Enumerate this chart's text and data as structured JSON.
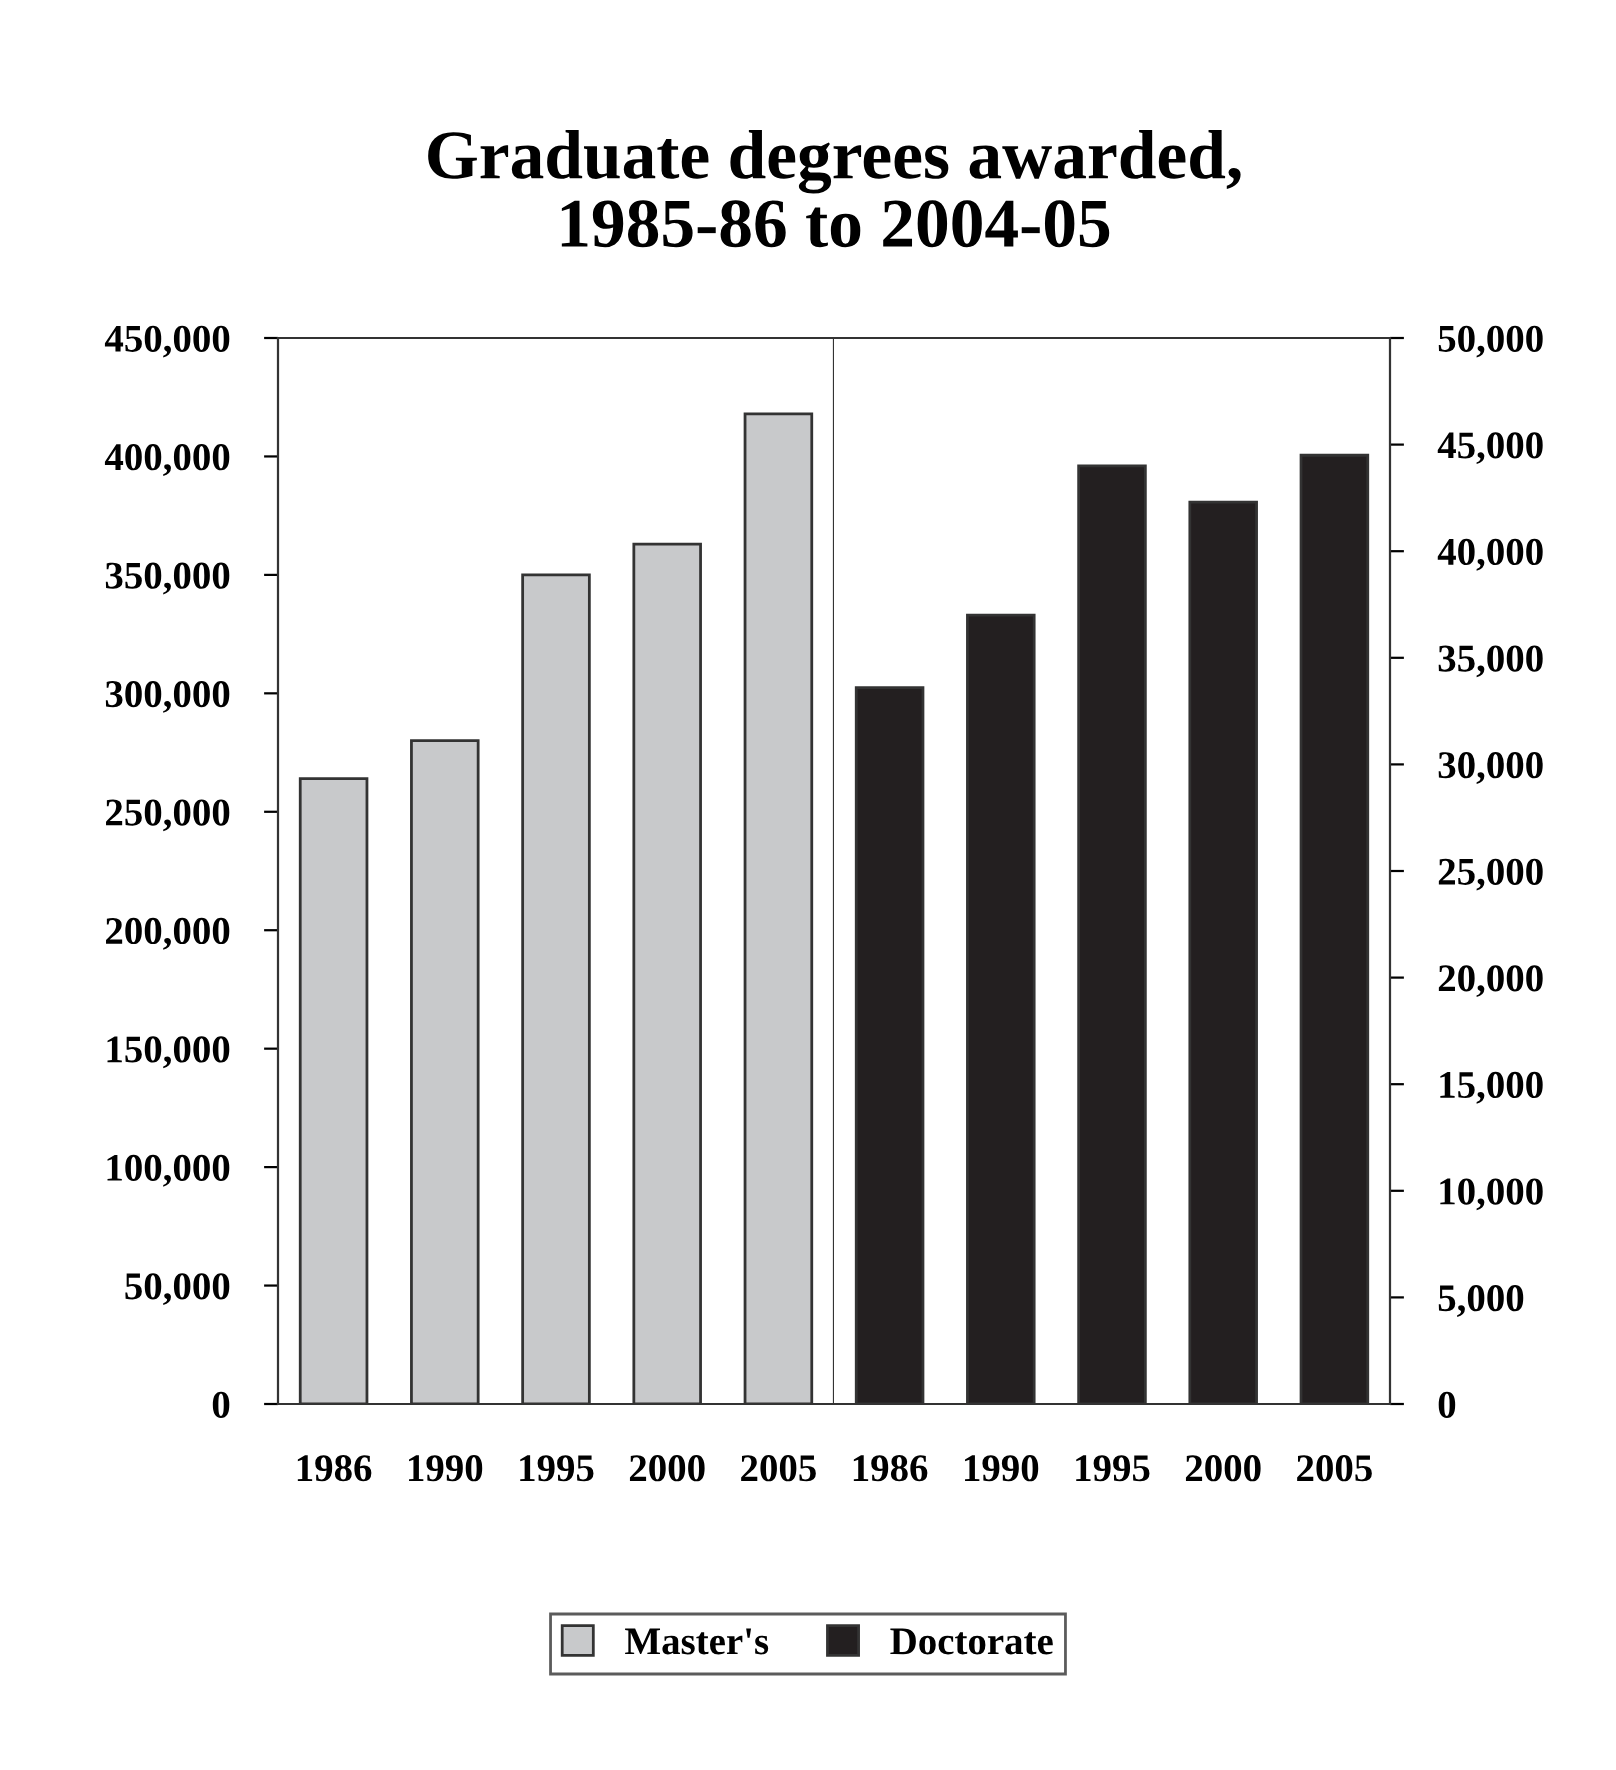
{
  "chart_data": [
    {
      "type": "bar",
      "title": "Graduate degrees awarded,\n1985-86 to 2004-05",
      "categories": [
        "1986",
        "1990",
        "1995",
        "2000",
        "2005"
      ],
      "series": [
        {
          "name": "Master's",
          "color": "#c8c9cb",
          "values": [
            264000,
            280000,
            350000,
            363000,
            418000
          ]
        }
      ],
      "ylim": [
        0,
        450000
      ],
      "yticks": [
        0,
        {
          "value": 50000,
          "label": "50,000"
        },
        {
          "value": 100000,
          "label": "100,000"
        },
        {
          "value": 150000,
          "label": "150,000"
        },
        {
          "value": 200000,
          "label": "200,000"
        },
        {
          "value": 250000,
          "label": "250,000"
        },
        {
          "value": 300000,
          "label": "300,000"
        },
        {
          "value": 350000,
          "label": "350,000"
        },
        {
          "value": 400000,
          "label": "400,000"
        },
        {
          "value": 450000,
          "label": "450,000"
        }
      ],
      "legend": "bottom"
    },
    {
      "type": "bar",
      "categories": [
        "1986",
        "1990",
        "1995",
        "2000",
        "2005"
      ],
      "series": [
        {
          "name": "Doctorate",
          "color": "#231f20",
          "axis": "y2",
          "values": [
            33600,
            37000,
            44000,
            42300,
            44500
          ]
        }
      ],
      "y2lim": [
        0,
        50000
      ],
      "y2ticks": [
        0,
        {
          "value": 5000,
          "label": "5,000"
        },
        {
          "value": 10000,
          "label": "10,000"
        },
        {
          "value": 15000,
          "label": "15,000"
        },
        {
          "value": 20000,
          "label": "20,000"
        },
        {
          "value": 25000,
          "label": "25,000"
        },
        {
          "value": 30000,
          "label": "30,000"
        },
        {
          "value": 35000,
          "label": "35,000"
        },
        {
          "value": 40000,
          "label": "40,000"
        },
        {
          "value": 45000,
          "label": "45,000"
        },
        {
          "value": 50000,
          "label": "50,000"
        }
      ],
      "legend": "bottom"
    }
  ]
}
